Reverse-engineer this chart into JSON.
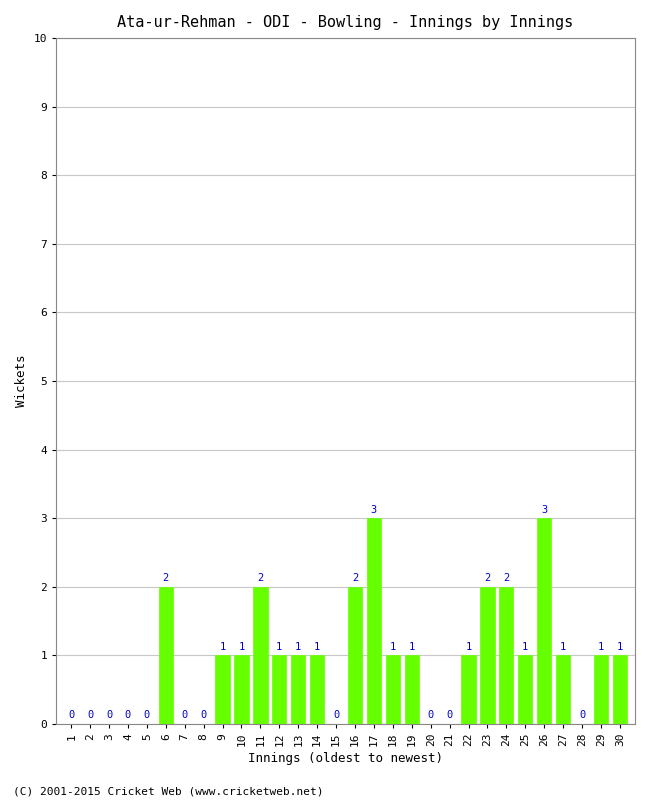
{
  "title": "Ata-ur-Rehman - ODI - Bowling - Innings by Innings",
  "xlabel": "Innings (oldest to newest)",
  "ylabel": "Wickets",
  "ylim": [
    0,
    10
  ],
  "yticks": [
    0,
    1,
    2,
    3,
    4,
    5,
    6,
    7,
    8,
    9,
    10
  ],
  "innings": [
    1,
    2,
    3,
    4,
    5,
    6,
    7,
    8,
    9,
    10,
    11,
    12,
    13,
    14,
    15,
    16,
    17,
    18,
    19,
    20,
    21,
    22,
    23,
    24,
    25,
    26,
    27,
    28,
    29,
    30
  ],
  "wickets": [
    0,
    0,
    0,
    0,
    0,
    2,
    0,
    0,
    1,
    1,
    2,
    1,
    1,
    1,
    0,
    2,
    3,
    1,
    1,
    0,
    0,
    1,
    2,
    2,
    1,
    3,
    1,
    0,
    1,
    1
  ],
  "bar_color": "#66ff00",
  "bar_edge_color": "#66ff00",
  "label_color": "#0000cc",
  "bg_color": "#ffffff",
  "grid_color": "#c8c8c8",
  "title_fontsize": 11,
  "axis_fontsize": 9,
  "label_fontsize": 7.5,
  "tick_fontsize": 8,
  "footer_text": "(C) 2001-2015 Cricket Web (www.cricketweb.net)",
  "footer_fontsize": 8
}
